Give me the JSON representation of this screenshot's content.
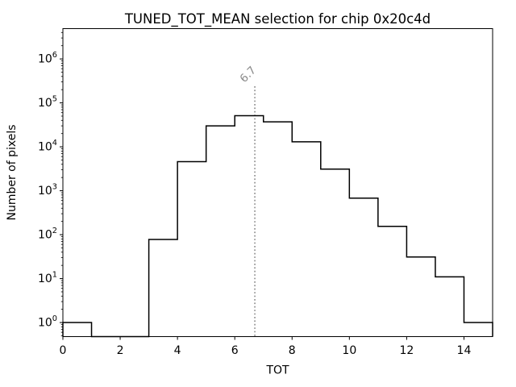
{
  "chart_data": {
    "type": "histogram",
    "subtype": "step-line-log-y",
    "title": "TUNED_TOT_MEAN selection for chip 0x20c4d",
    "xlabel": "TOT",
    "ylabel": "Number of pixels",
    "bin_edges": [
      0,
      1,
      2,
      3,
      4,
      5,
      6,
      7,
      8,
      9,
      10,
      11,
      12,
      13,
      14,
      15
    ],
    "counts": [
      1,
      0,
      0,
      78,
      4600,
      30000,
      51000,
      37000,
      13000,
      3100,
      680,
      155,
      31,
      11,
      1
    ],
    "xlim": [
      0,
      15
    ],
    "ylim_log10": [
      -0.32,
      6.69
    ],
    "x_ticks": [
      0,
      2,
      4,
      6,
      8,
      10,
      12,
      14
    ],
    "y_tick_base": "10",
    "y_tick_exponents": [
      0,
      1,
      2,
      3,
      4,
      5,
      6
    ],
    "grid": false,
    "legend": null,
    "line_color": "#000000",
    "background_color": "#ffffff",
    "threshold": {
      "value": 6.7,
      "label": "6.7",
      "color": "#8a8a8a",
      "style": "dotted"
    }
  }
}
